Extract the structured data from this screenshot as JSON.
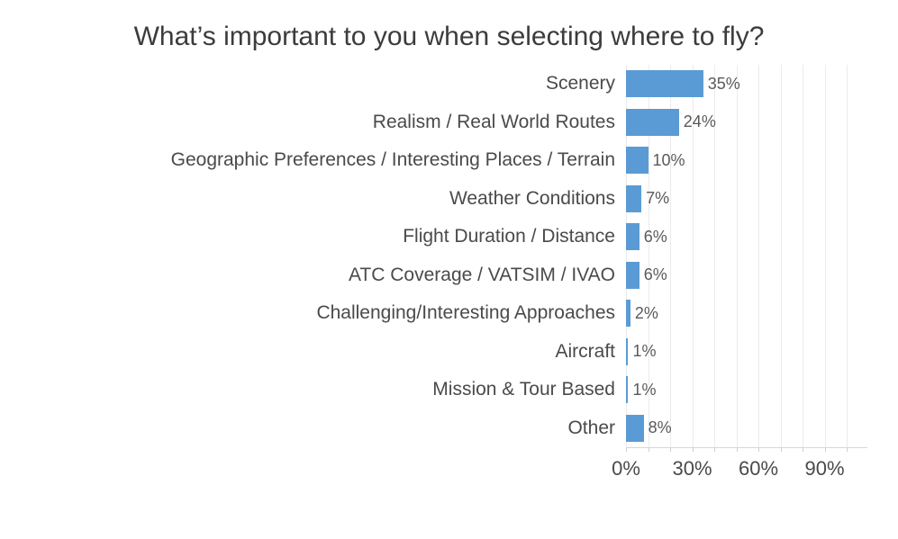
{
  "chart_data": {
    "type": "bar",
    "orientation": "horizontal",
    "title": "What’s important to you when selecting where to fly?",
    "categories": [
      "Scenery",
      "Realism / Real World Routes",
      "Geographic Preferences / Interesting Places / Terrain",
      "Weather Conditions",
      "Flight Duration / Distance",
      "ATC Coverage / VATSIM / IVAO",
      "Challenging/Interesting Approaches",
      "Aircraft",
      "Mission & Tour Based",
      "Other"
    ],
    "values": [
      35,
      24,
      10,
      7,
      6,
      6,
      2,
      1,
      1,
      8
    ],
    "data_labels": [
      "35%",
      "24%",
      "10%",
      "7%",
      "6%",
      "6%",
      "2%",
      "1%",
      "1%",
      "8%"
    ],
    "xlabel": "",
    "ylabel": "",
    "xlim": [
      0,
      100
    ],
    "x_tick_values": [
      0,
      30,
      60,
      90
    ],
    "x_tick_labels": [
      "0%",
      "30%",
      "60%",
      "90%"
    ],
    "gridline_interval": 10,
    "grid": true,
    "legend": false,
    "bar_color": "#5B9BD5",
    "background_color": "#ffffff",
    "text_color": "#4a4a4a"
  }
}
